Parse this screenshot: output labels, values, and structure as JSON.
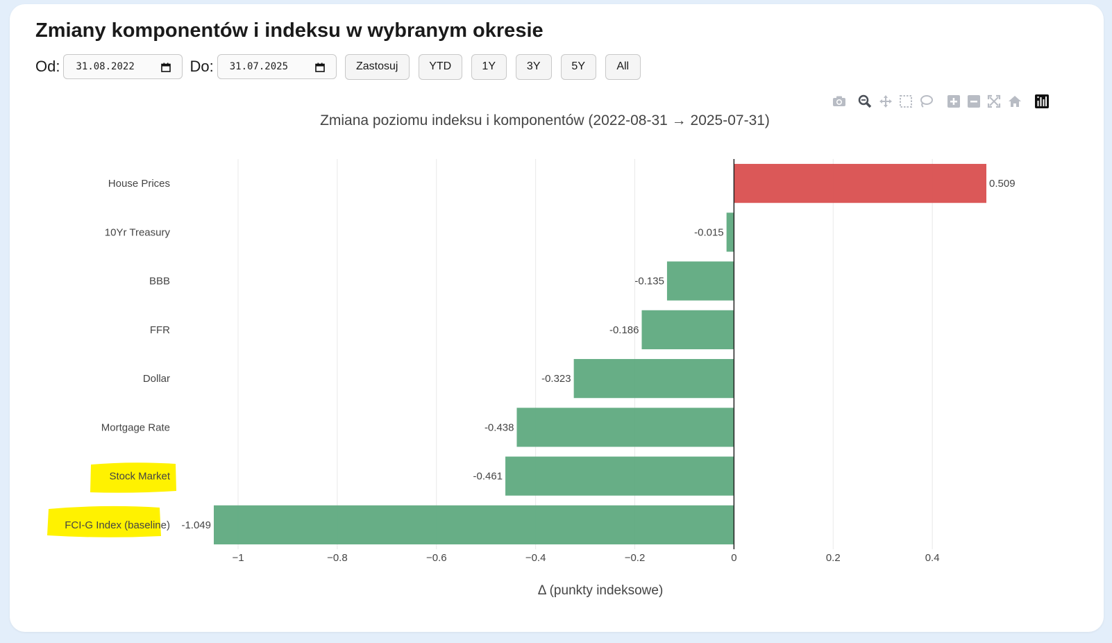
{
  "page": {
    "title": "Zmiany komponentów i indeksu w wybranym okresie"
  },
  "controls": {
    "from_label": "Od:",
    "from_value": "31.08.2022",
    "to_label": "Do:",
    "to_value": "31.07.2025",
    "apply_label": "Zastosuj",
    "presets": [
      "YTD",
      "1Y",
      "3Y",
      "5Y",
      "All"
    ]
  },
  "modebar": {
    "icons": [
      "camera-icon",
      "zoom-icon",
      "pan-icon",
      "box-select-icon",
      "lasso-icon",
      "zoom-in-icon",
      "zoom-out-icon",
      "autoscale-icon",
      "reset-axes-icon",
      "plotly-logo-icon"
    ]
  },
  "colors": {
    "positive": "#d94f4f",
    "negative": "#5faa80",
    "highlight": "#fff200"
  },
  "chart_data": {
    "type": "bar",
    "orientation": "horizontal",
    "title": "Zmiana poziomu indeksu i komponentów (2022-08-31 → 2025-07-31)",
    "xlabel": "Δ (punkty indeksowe)",
    "ylabel": "",
    "categories": [
      "House Prices",
      "10Yr Treasury",
      "BBB",
      "FFR",
      "Dollar",
      "Mortgage Rate",
      "Stock Market",
      "FCI-G Index (baseline)"
    ],
    "values": [
      0.509,
      -0.015,
      -0.135,
      -0.186,
      -0.323,
      -0.438,
      -0.461,
      -1.049
    ],
    "value_labels": [
      "0.509",
      "-0.015",
      "-0.135",
      "-0.186",
      "-0.323",
      "-0.438",
      "-0.461",
      "-1.049"
    ],
    "highlighted": [
      "Stock Market",
      "FCI-G Index (baseline)"
    ],
    "x_ticks": [
      -1,
      -0.8,
      -0.6,
      -0.4,
      -0.2,
      0,
      0.2,
      0.4
    ],
    "x_tick_labels": [
      "−1",
      "−0.8",
      "−0.6",
      "−0.4",
      "−0.2",
      "0",
      "0.2",
      "0.4"
    ],
    "xlim": [
      -1.049,
      0.509
    ],
    "grid": true,
    "legend": "none"
  }
}
